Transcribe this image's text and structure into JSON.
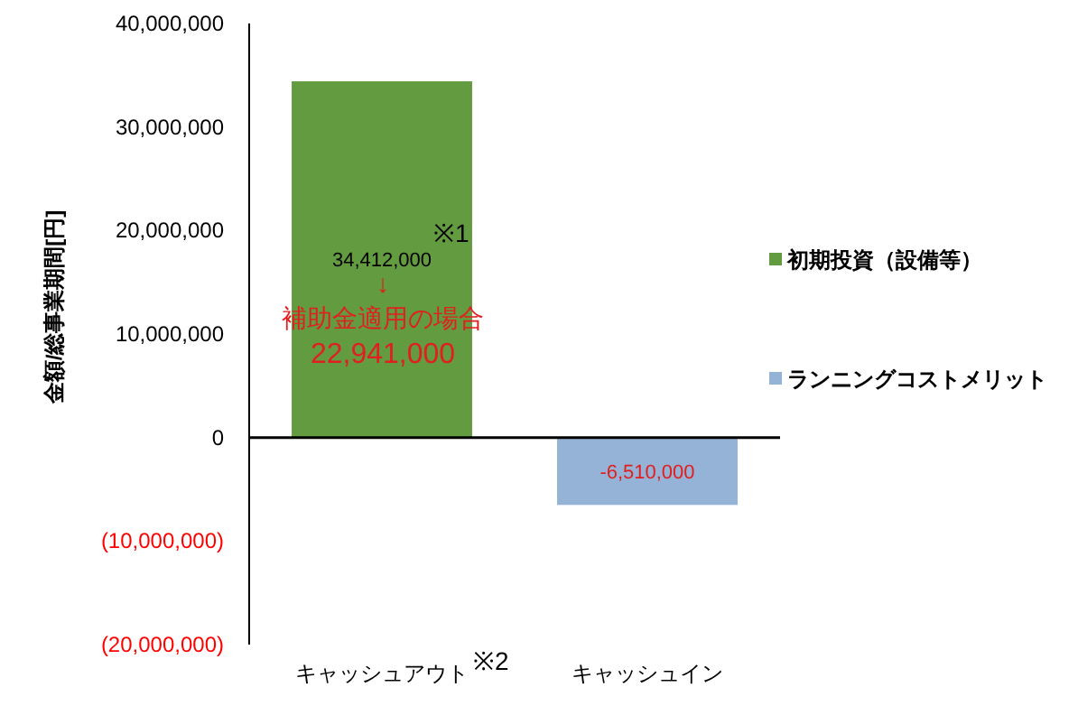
{
  "chart_data": {
    "type": "bar",
    "ylabel": "金額/総事業期間[円]",
    "categories": [
      "キャッシュアウト",
      "キャッシュイン"
    ],
    "series": [
      {
        "name": "初期投資（設備等）",
        "color": "#629b40",
        "values": [
          34412000,
          null
        ],
        "value_labels": [
          "34,412,000",
          null
        ]
      },
      {
        "name": "ランニングコストメリット",
        "color": "#95b3d7",
        "values": [
          null,
          -6510000
        ],
        "value_labels": [
          null,
          "-6,510,000"
        ]
      }
    ],
    "ylim": [
      -20000000,
      40000000
    ],
    "yticks": [
      {
        "value": -20000000,
        "label": "(20,000,000)"
      },
      {
        "value": -10000000,
        "label": "(10,000,000)"
      },
      0,
      {
        "value": 10000000,
        "label": "10,000,000"
      },
      {
        "value": 20000000,
        "label": "20,000,000"
      },
      {
        "value": 30000000,
        "label": "30,000,000"
      },
      {
        "value": 40000000,
        "label": "40,000,000"
      }
    ],
    "legend": "right",
    "annotations": [
      "※1",
      "↓",
      "補助金適用の場合",
      "22,941,000",
      "※2"
    ]
  }
}
